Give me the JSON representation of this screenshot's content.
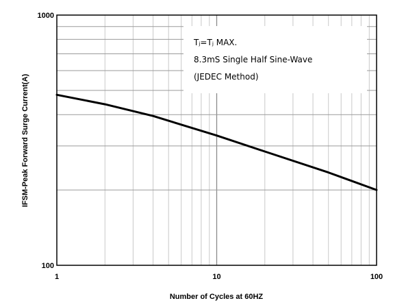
{
  "chart_data": {
    "type": "line",
    "title": "",
    "xlabel": "Number of Cycles at 60HZ",
    "ylabel": "IFSM-Peak Forward Surge Current(A)",
    "x_scale": "log",
    "y_scale": "log",
    "xlim": [
      1,
      100
    ],
    "ylim": [
      100,
      1000
    ],
    "x_tick_labels": [
      "1",
      "10",
      "100"
    ],
    "y_tick_labels": [
      "100",
      "1000"
    ],
    "grid": true,
    "series": [
      {
        "color": "#000000",
        "x": [
          1,
          2,
          4,
          10,
          20,
          50,
          100
        ],
        "y": [
          480,
          440,
          395,
          330,
          285,
          235,
          200
        ]
      }
    ],
    "annotation": {
      "line1": "Tⱼ=Tⱼ MAX.",
      "line2": "8.3mS Single Half Sine-Wave",
      "line3": "(JEDEC Method)"
    }
  }
}
